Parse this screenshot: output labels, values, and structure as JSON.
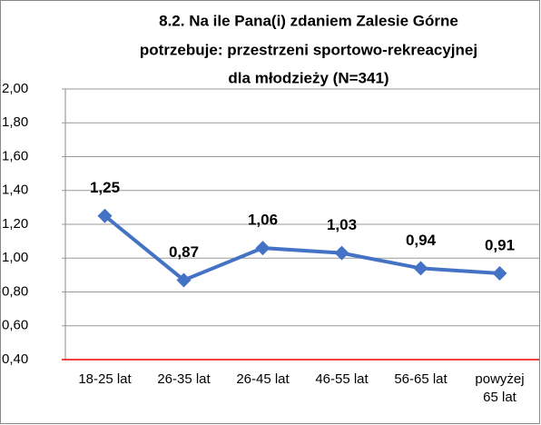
{
  "chart_data": {
    "type": "line",
    "title": [
      "8.2. Na ile Pana(i) zdaniem Zalesie Górne",
      "potrzebuje: przestrzeni sportowo-rekreacyjnej",
      "dla młodzieży (N=341)"
    ],
    "categories": [
      "18-25 lat",
      "26-35 lat",
      "26-45 lat",
      "46-55 lat",
      "56-65 lat",
      "powyżej 65 lat"
    ],
    "series": [
      {
        "color": "#4472c4",
        "values": [
          1.25,
          0.87,
          1.06,
          1.03,
          0.94,
          0.91
        ],
        "value_labels": [
          "1,25",
          "0,87",
          "1,06",
          "1,03",
          "0,94",
          "0,91"
        ]
      }
    ],
    "ylim": [
      0.4,
      2.0
    ],
    "yticks": [
      {
        "value": 0.4,
        "label": "0,40"
      },
      {
        "value": 0.6,
        "label": "0,60"
      },
      {
        "value": 0.8,
        "label": "0,80"
      },
      {
        "value": 1.0,
        "label": "1,00"
      },
      {
        "value": 1.2,
        "label": "1,20"
      },
      {
        "value": 1.4,
        "label": "1,40"
      },
      {
        "value": 1.6,
        "label": "1,60"
      },
      {
        "value": 1.8,
        "label": "1,80"
      },
      {
        "value": 2.0,
        "label": "2,00"
      }
    ],
    "grid": true
  }
}
